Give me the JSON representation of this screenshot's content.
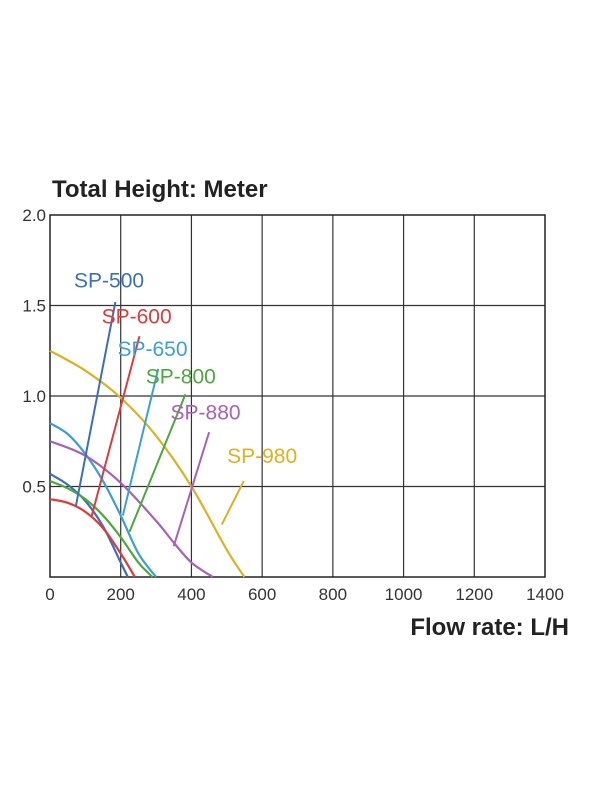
{
  "chart_data": {
    "type": "line",
    "ylabel": "Total Height:  Meter",
    "xlabel": "Flow rate:  L/H",
    "xlim": [
      0,
      1400
    ],
    "ylim": [
      0,
      2.0
    ],
    "xticks": [
      0,
      200,
      400,
      600,
      800,
      1000,
      1200,
      1400
    ],
    "xtick_labels": [
      "0",
      "200",
      "400",
      "600",
      "800",
      "1000",
      "1200",
      "1400"
    ],
    "yticks": [
      0.5,
      1.0,
      1.5,
      2.0
    ],
    "ytick_labels": [
      "0.5",
      "1.0",
      "1.5",
      "2.0"
    ],
    "grid": true,
    "series": [
      {
        "name": "SP-500",
        "color": "#3a6fc0",
        "x": [
          0,
          50,
          100,
          150,
          200,
          220
        ],
        "y": [
          0.57,
          0.51,
          0.42,
          0.28,
          0.08,
          0
        ],
        "label_at": [
          167,
          1.6
        ],
        "leader": [
          [
            73,
            0.39
          ],
          [
            185,
            1.52
          ]
        ]
      },
      {
        "name": "SP-600",
        "color": "#e03a3a",
        "x": [
          0,
          50,
          100,
          150,
          200,
          240
        ],
        "y": [
          0.43,
          0.41,
          0.36,
          0.27,
          0.13,
          0
        ],
        "label_at": [
          245,
          1.4
        ],
        "leader": [
          [
            117,
            0.33
          ],
          [
            253,
            1.33
          ]
        ]
      },
      {
        "name": "SP-650",
        "color": "#3aa0d8",
        "x": [
          0,
          50,
          100,
          150,
          200,
          250,
          300
        ],
        "y": [
          0.85,
          0.79,
          0.68,
          0.53,
          0.34,
          0.13,
          0
        ],
        "label_at": [
          290,
          1.22
        ],
        "leader": [
          [
            206,
            0.34
          ],
          [
            306,
            1.15
          ]
        ]
      },
      {
        "name": "SP-800",
        "color": "#4aaa3a",
        "x": [
          0,
          50,
          100,
          150,
          200,
          250,
          290
        ],
        "y": [
          0.53,
          0.49,
          0.43,
          0.34,
          0.22,
          0.08,
          0
        ],
        "label_at": [
          370,
          1.07
        ],
        "leader": [
          [
            225,
            0.25
          ],
          [
            383,
            1.01
          ]
        ]
      },
      {
        "name": "SP-880",
        "color": "#a860b8",
        "x": [
          0,
          100,
          200,
          300,
          350,
          400,
          460
        ],
        "y": [
          0.75,
          0.67,
          0.52,
          0.31,
          0.19,
          0.08,
          0
        ],
        "label_at": [
          440,
          0.87
        ],
        "leader": [
          [
            350,
            0.17
          ],
          [
            450,
            0.8
          ]
        ]
      },
      {
        "name": "SP-980",
        "color": "#e0b020",
        "x": [
          0,
          100,
          200,
          300,
          400,
          500,
          550
        ],
        "y": [
          1.25,
          1.14,
          0.99,
          0.78,
          0.5,
          0.15,
          0
        ],
        "label_at": [
          600,
          0.63
        ],
        "leader": [
          [
            486,
            0.29
          ],
          [
            548,
            0.53
          ]
        ]
      }
    ]
  }
}
